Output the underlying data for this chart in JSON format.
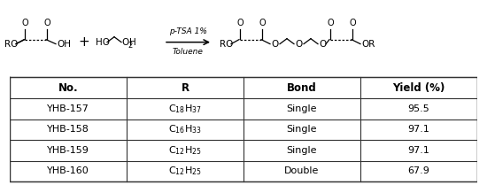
{
  "table_headers": [
    "No.",
    "R",
    "Bond",
    "Yield (%)"
  ],
  "table_rows": [
    [
      "YHB-157",
      "Single",
      "95.5"
    ],
    [
      "YHB-158",
      "Single",
      "97.1"
    ],
    [
      "YHB-159",
      "Single",
      "97.1"
    ],
    [
      "YHB-160",
      "Double",
      "67.9"
    ]
  ],
  "r_labels": [
    "C$_{18}$H$_{37}$",
    "C$_{16}$H$_{33}$",
    "C$_{12}$H$_{25}$",
    "C$_{12}$H$_{25}$"
  ],
  "nos": [
    "YHB-157",
    "YHB-158",
    "YHB-159",
    "YHB-160"
  ],
  "reaction_arrow_label_top": "p-TSA 1%",
  "reaction_arrow_label_bottom": "Toluene",
  "background_color": "#ffffff"
}
